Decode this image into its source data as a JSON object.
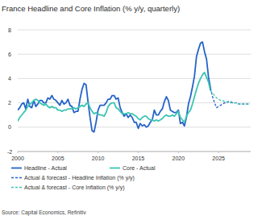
{
  "chart_data": {
    "type": "line",
    "title": "France Headline and Core Inflation (% y/y, quarterly)",
    "source": "Source: Capital Economics, Refinitiv",
    "xlim": [
      2000,
      2029
    ],
    "xticks": [
      2000,
      2005,
      2010,
      2015,
      2020,
      2025
    ],
    "ylim": [
      -2,
      8
    ],
    "yticks": [
      -2,
      0,
      2,
      4,
      6,
      8
    ],
    "grid": true,
    "legend": "bottom",
    "series": [
      {
        "name": "Headline - Actual",
        "color": "#2563c9",
        "line_style": "solid",
        "x": [
          2000,
          2000.25,
          2000.5,
          2000.75,
          2001,
          2001.25,
          2001.5,
          2001.75,
          2002,
          2002.25,
          2002.5,
          2002.75,
          2003,
          2003.25,
          2003.5,
          2003.75,
          2004,
          2004.25,
          2004.5,
          2004.75,
          2005,
          2005.25,
          2005.5,
          2005.75,
          2006,
          2006.25,
          2006.5,
          2006.75,
          2007,
          2007.25,
          2007.5,
          2007.75,
          2008,
          2008.25,
          2008.5,
          2008.75,
          2009,
          2009.25,
          2009.5,
          2009.75,
          2010,
          2010.25,
          2010.5,
          2010.75,
          2011,
          2011.25,
          2011.5,
          2011.75,
          2012,
          2012.25,
          2012.5,
          2012.75,
          2013,
          2013.25,
          2013.5,
          2013.75,
          2014,
          2014.25,
          2014.5,
          2014.75,
          2015,
          2015.25,
          2015.5,
          2015.75,
          2016,
          2016.25,
          2016.5,
          2016.75,
          2017,
          2017.25,
          2017.5,
          2017.75,
          2018,
          2018.25,
          2018.5,
          2018.75,
          2019,
          2019.25,
          2019.5,
          2019.75,
          2020,
          2020.25,
          2020.5,
          2020.75,
          2021,
          2021.25,
          2021.5,
          2021.75,
          2022,
          2022.25,
          2022.5,
          2022.75,
          2023,
          2023.25,
          2023.5,
          2023.75,
          2024
        ],
        "values": [
          1.4,
          1.6,
          1.9,
          2.0,
          1.5,
          2.3,
          1.7,
          1.6,
          2.2,
          1.7,
          1.9,
          2.2,
          2.2,
          2.0,
          2.0,
          2.4,
          2.3,
          2.6,
          2.3,
          2.2,
          2.0,
          1.8,
          2.2,
          1.9,
          2.0,
          2.3,
          1.8,
          1.7,
          1.2,
          1.3,
          1.3,
          2.3,
          3.1,
          3.6,
          3.5,
          2.1,
          0.8,
          -0.3,
          -0.4,
          0.4,
          1.4,
          1.8,
          1.8,
          1.8,
          2.0,
          2.3,
          2.3,
          2.6,
          2.6,
          2.3,
          2.4,
          1.6,
          1.2,
          0.9,
          1.1,
          0.8,
          1.0,
          0.8,
          0.4,
          0.4,
          -0.1,
          0.3,
          0.1,
          0.2,
          0.0,
          0.1,
          0.4,
          0.6,
          1.4,
          1.0,
          1.0,
          1.3,
          1.5,
          2.1,
          2.5,
          2.2,
          1.4,
          1.3,
          1.2,
          1.2,
          1.4,
          0.3,
          0.4,
          0.1,
          0.8,
          1.9,
          2.5,
          3.3,
          4.2,
          5.8,
          6.4,
          6.9,
          7.0,
          6.2,
          5.6,
          4.1,
          3.2
        ]
      },
      {
        "name": "Core - Actual",
        "color": "#3cc4b2",
        "line_style": "solid",
        "x": [
          2000,
          2000.25,
          2000.5,
          2000.75,
          2001,
          2001.25,
          2001.5,
          2001.75,
          2002,
          2002.25,
          2002.5,
          2002.75,
          2003,
          2003.25,
          2003.5,
          2003.75,
          2004,
          2004.25,
          2004.5,
          2004.75,
          2005,
          2005.25,
          2005.5,
          2005.75,
          2006,
          2006.25,
          2006.5,
          2006.75,
          2007,
          2007.25,
          2007.5,
          2007.75,
          2008,
          2008.25,
          2008.5,
          2008.75,
          2009,
          2009.25,
          2009.5,
          2009.75,
          2010,
          2010.25,
          2010.5,
          2010.75,
          2011,
          2011.25,
          2011.5,
          2011.75,
          2012,
          2012.25,
          2012.5,
          2012.75,
          2013,
          2013.25,
          2013.5,
          2013.75,
          2014,
          2014.25,
          2014.5,
          2014.75,
          2015,
          2015.25,
          2015.5,
          2015.75,
          2016,
          2016.25,
          2016.5,
          2016.75,
          2017,
          2017.25,
          2017.5,
          2017.75,
          2018,
          2018.25,
          2018.5,
          2018.75,
          2019,
          2019.25,
          2019.5,
          2019.75,
          2020,
          2020.25,
          2020.5,
          2020.75,
          2021,
          2021.25,
          2021.5,
          2021.75,
          2022,
          2022.25,
          2022.5,
          2022.75,
          2023,
          2023.25,
          2023.5,
          2023.75,
          2024
        ],
        "values": [
          0.5,
          0.8,
          1.0,
          1.2,
          1.4,
          1.7,
          1.9,
          2.0,
          2.2,
          2.3,
          2.2,
          2.0,
          1.9,
          1.8,
          1.9,
          1.7,
          1.6,
          1.7,
          1.6,
          1.6,
          1.4,
          1.4,
          1.3,
          1.4,
          1.4,
          1.5,
          1.5,
          1.5,
          1.6,
          1.5,
          1.6,
          1.7,
          1.8,
          1.7,
          1.9,
          2.0,
          1.6,
          1.3,
          1.1,
          1.2,
          1.1,
          1.0,
          1.0,
          0.9,
          1.2,
          1.7,
          1.9,
          2.0,
          2.0,
          1.6,
          1.5,
          1.3,
          1.1,
          1.1,
          1.1,
          1.2,
          1.1,
          1.1,
          1.0,
          0.9,
          0.7,
          0.6,
          0.8,
          0.9,
          0.9,
          0.7,
          0.6,
          0.6,
          0.5,
          0.6,
          0.5,
          0.6,
          0.7,
          0.9,
          1.0,
          0.9,
          0.9,
          1.0,
          0.9,
          1.1,
          1.3,
          0.8,
          0.6,
          0.4,
          0.9,
          1.2,
          1.4,
          1.9,
          2.5,
          3.1,
          3.6,
          4.0,
          4.3,
          4.5,
          4.1,
          3.7,
          3.0
        ]
      },
      {
        "name": "Actual & forecast - Headline Inflation (% y/y)",
        "color": "#2563c9",
        "line_style": "dashed",
        "x": [
          2024,
          2024.25,
          2024.5,
          2024.75,
          2025,
          2025.25,
          2025.5,
          2025.75,
          2026,
          2026.25,
          2026.5,
          2026.75,
          2027,
          2027.25,
          2027.5,
          2027.75,
          2028,
          2028.25,
          2028.5,
          2028.75
        ],
        "values": [
          3.2,
          2.5,
          2.0,
          1.6,
          1.7,
          1.8,
          1.9,
          2.0,
          2.0,
          2.1,
          2.1,
          2.0,
          2.0,
          2.0,
          1.9,
          1.9,
          1.9,
          1.9,
          1.9,
          1.9
        ]
      },
      {
        "name": "Actual & forecast - Core Inflation (% y/y)",
        "color": "#3cc4b2",
        "line_style": "dashed",
        "x": [
          2024,
          2024.25,
          2024.5,
          2024.75,
          2025,
          2025.25,
          2025.5,
          2025.75,
          2026,
          2026.25,
          2026.5,
          2026.75,
          2027,
          2027.25,
          2027.5,
          2027.75,
          2028,
          2028.25,
          2028.5,
          2028.75
        ],
        "values": [
          3.0,
          2.8,
          2.6,
          2.4,
          2.3,
          2.2,
          2.2,
          2.1,
          2.1,
          2.1,
          2.0,
          2.0,
          2.0,
          2.0,
          1.9,
          1.9,
          1.9,
          1.9,
          1.9,
          1.9
        ]
      }
    ]
  }
}
